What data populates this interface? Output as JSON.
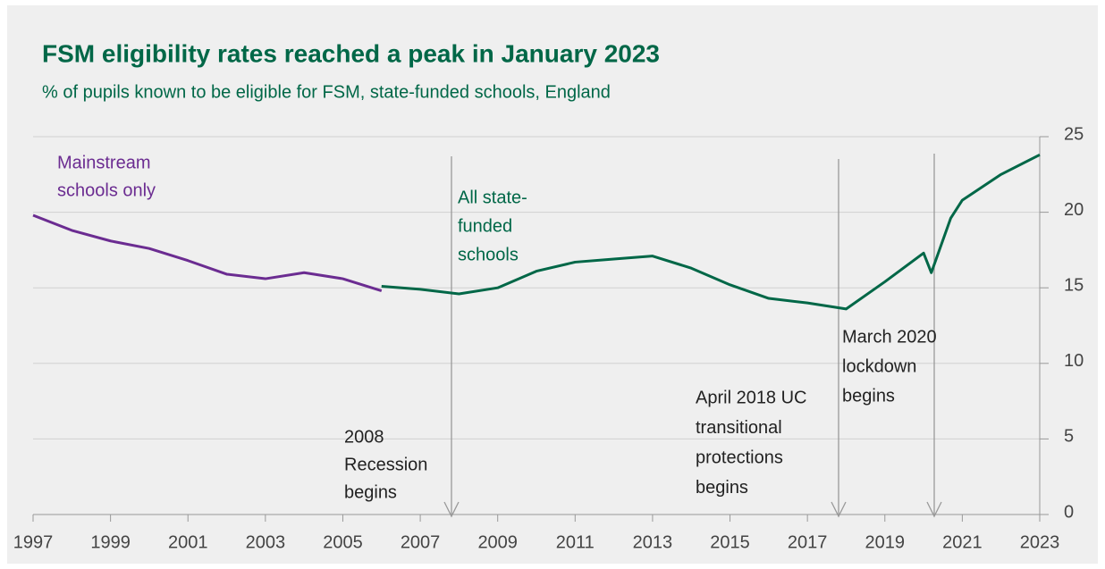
{
  "chart_data": {
    "type": "line",
    "title": "FSM eligibility rates reached a peak in January 2023",
    "subtitle": "% of pupils known to be eligible for FSM,  state-funded schools, England",
    "xlim": [
      1997,
      2023
    ],
    "xticks": [
      1997,
      1999,
      2001,
      2003,
      2005,
      2007,
      2009,
      2011,
      2013,
      2015,
      2017,
      2019,
      2021,
      2023
    ],
    "ylim": [
      0,
      25
    ],
    "yticks": [
      0,
      5,
      10,
      15,
      20,
      25
    ],
    "grid": true,
    "y_axis_side": "right",
    "series": [
      {
        "name": [
          "Mainstream",
          "schools only"
        ],
        "color": "#6b2c91",
        "x": [
          1997,
          1998,
          1999,
          2000,
          2001,
          2002,
          2003,
          2004,
          2005,
          2006
        ],
        "values": [
          19.8,
          18.8,
          18.1,
          17.6,
          16.8,
          15.9,
          15.6,
          16.0,
          15.6,
          14.8
        ]
      },
      {
        "name": [
          "All state-",
          "funded",
          "schools"
        ],
        "color": "#006747",
        "x": [
          2006,
          2007,
          2008,
          2009,
          2010,
          2011,
          2012,
          2013,
          2014,
          2015,
          2016,
          2017,
          2018,
          2019,
          2020,
          2020.2,
          2020.7,
          2021,
          2022,
          2023
        ],
        "values": [
          15.1,
          14.9,
          14.6,
          15.0,
          16.1,
          16.7,
          16.9,
          17.1,
          16.3,
          15.2,
          14.3,
          14.0,
          13.6,
          15.4,
          17.3,
          16.0,
          19.6,
          20.8,
          22.5,
          23.8
        ]
      }
    ],
    "annotations": [
      {
        "lines": [
          "2008",
          "Recession",
          "begins"
        ]
      },
      {
        "lines": [
          "April 2018 UC",
          "transitional",
          "protections",
          "begins"
        ]
      },
      {
        "lines": [
          "March 2020",
          "lockdown",
          "begins"
        ]
      }
    ]
  }
}
